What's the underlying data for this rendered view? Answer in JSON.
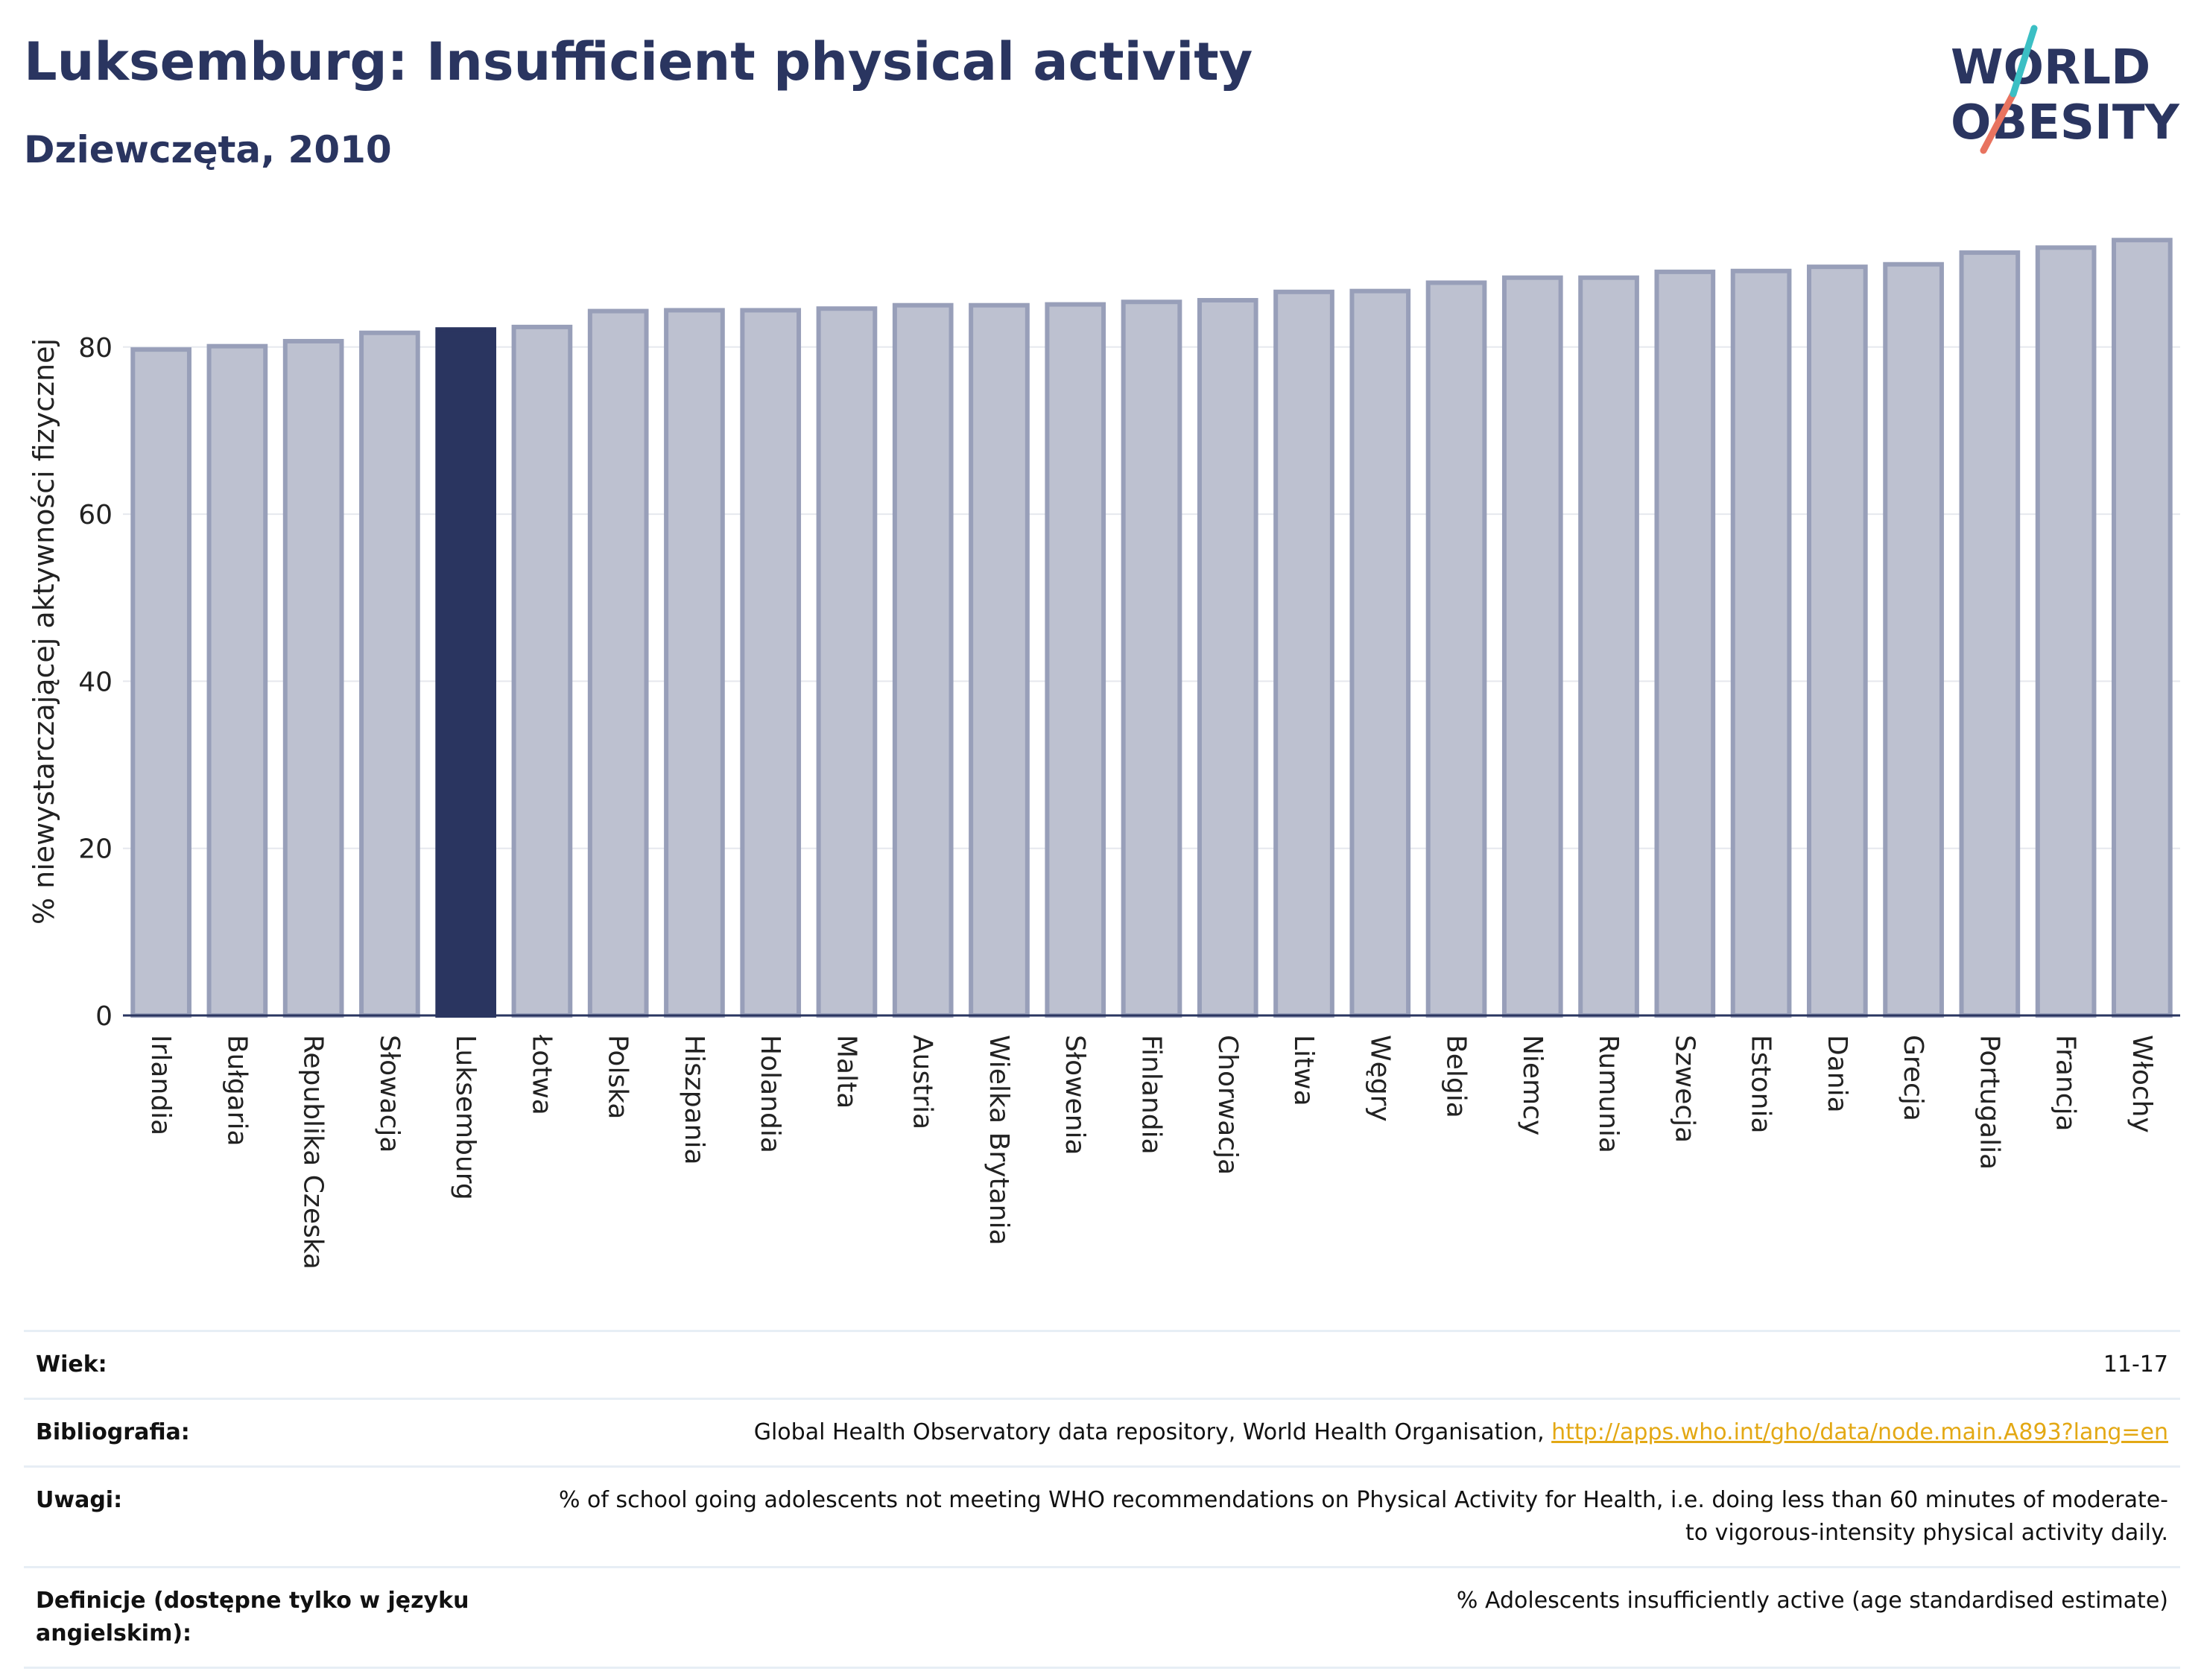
{
  "header": {
    "title": "Luksemburg: Insufficient physical activity",
    "subtitle": "Dziewczęta, 2010"
  },
  "logo": {
    "line1": "WORLD",
    "line2": "OBESITY",
    "colors": {
      "text": "#2a3560",
      "slash_teal": "#3bbfc4",
      "slash_coral": "#e8735f"
    }
  },
  "chart_data": {
    "type": "bar",
    "ylabel": "% niewystarczającej aktywności fizycznej",
    "ylim": [
      0,
      93
    ],
    "yticks": [
      0,
      20,
      40,
      60,
      80
    ],
    "grid": true,
    "highlight": "Luksemburg",
    "colors": {
      "bar": "#bdc1d0",
      "bar_border": "#989fb9",
      "highlight": "#2a3560"
    },
    "categories": [
      "Irlandia",
      "Bułgaria",
      "Republika Czeska",
      "Słowacja",
      "Luksemburg",
      "Łotwa",
      "Polska",
      "Hiszpania",
      "Holandia",
      "Malta",
      "Austria",
      "Wielka Brytania",
      "Słowenia",
      "Finlandia",
      "Chorwacja",
      "Litwa",
      "Węgry",
      "Belgia",
      "Niemcy",
      "Rumunia",
      "Szwecja",
      "Estonia",
      "Dania",
      "Grecja",
      "Portugalia",
      "Francja",
      "Włochy"
    ],
    "values": [
      79.7,
      80.1,
      80.7,
      81.7,
      82.1,
      82.4,
      84.3,
      84.4,
      84.4,
      84.6,
      85.0,
      85.0,
      85.1,
      85.4,
      85.6,
      86.6,
      86.7,
      87.7,
      88.3,
      88.3,
      89.0,
      89.1,
      89.6,
      89.9,
      91.3,
      91.9,
      92.8
    ]
  },
  "info": [
    {
      "key": "Wiek:",
      "value": "11-17"
    },
    {
      "key": "Bibliografia:",
      "value": "Global Health Observatory data repository, World Health Organisation, ",
      "link": "http://apps.who.int/gho/data/node.main.A893?lang=en"
    },
    {
      "key": "Uwagi:",
      "value": "% of school going adolescents not meeting WHO recommendations on Physical Activity for Health, i.e. doing less than 60 minutes of moderate- to vigorous-intensity physical activity daily."
    },
    {
      "key": "Definicje (dostępne tylko w języku angielskim):",
      "value": "% Adolescents insufficiently active (age standardised estimate)"
    }
  ]
}
